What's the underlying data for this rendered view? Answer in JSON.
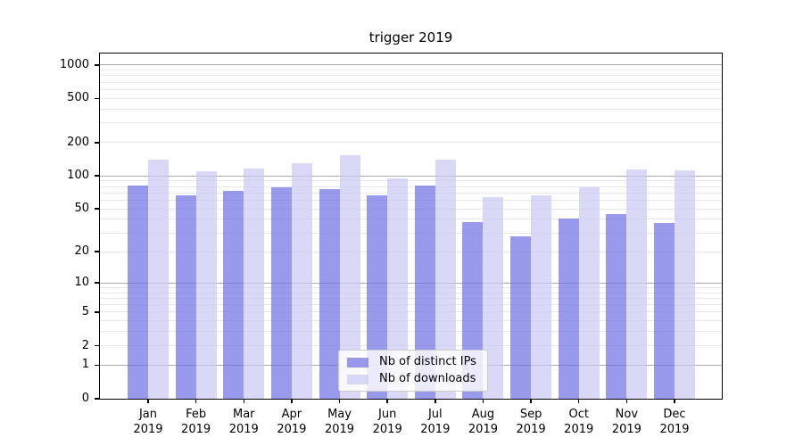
{
  "chart_data": {
    "type": "bar",
    "title": "trigger 2019",
    "categories": [
      "Jan 2019",
      "Feb 2019",
      "Mar 2019",
      "Apr 2019",
      "May 2019",
      "Jun 2019",
      "Jul 2019",
      "Aug 2019",
      "Sep 2019",
      "Oct 2019",
      "Nov 2019",
      "Dec 2019"
    ],
    "series": [
      {
        "name": "Nb of distinct IPs",
        "color": "rgba(111,111,229,0.7)",
        "apparent_hex": "#9a9aee",
        "values": [
          82,
          67,
          73,
          79,
          76,
          66,
          82,
          38,
          28,
          41,
          45,
          37
        ]
      },
      {
        "name": "Nb of downloads",
        "color": "rgba(201,201,244,0.7)",
        "apparent_hex": "#d9d9f7",
        "values": [
          141,
          111,
          117,
          129,
          155,
          94,
          139,
          64,
          67,
          78,
          115,
          113
        ]
      }
    ],
    "yscale": "log10(1+x)",
    "ylim": [
      0,
      1270
    ],
    "yticks": [
      0,
      1,
      2,
      5,
      10,
      20,
      50,
      100,
      200,
      500,
      1000
    ],
    "xlabel": "",
    "ylabel": "",
    "grid": {
      "major": true,
      "minor": true
    },
    "legend_position": "lower center",
    "colors": {
      "grid_major": "#ababab",
      "grid_minor": "#e8e8e8",
      "axis": "#000000",
      "background": "#ffffff",
      "legend_border": "#cccccc",
      "legend_bg": "rgba(255,255,255,0.8)"
    }
  }
}
